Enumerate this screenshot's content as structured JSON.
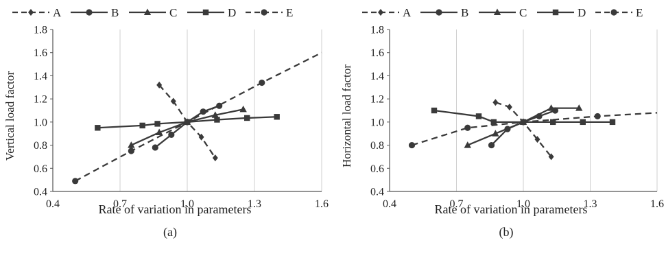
{
  "chart_data": [
    {
      "type": "line",
      "panel_label": "(a)",
      "xlabel": "Rate of variation in parameters",
      "ylabel": "Vertical load factor",
      "xlim": [
        0.4,
        1.6
      ],
      "ylim": [
        0.4,
        1.8
      ],
      "xticks": [
        "0.4",
        "0.7",
        "1.0",
        "1.3",
        "1.6"
      ],
      "yticks": [
        "0.4",
        "0.6",
        "0.8",
        "1.0",
        "1.2",
        "1.4",
        "1.6",
        "1.8"
      ],
      "grid": "vertical",
      "legend": "top",
      "series": [
        {
          "name": "A",
          "style": "dashed",
          "marker": "diamond",
          "points": [
            [
              0.875,
              1.32
            ],
            [
              0.938,
              1.18
            ],
            [
              1.0,
              1.0
            ],
            [
              1.063,
              0.87
            ],
            [
              1.125,
              0.69
            ]
          ]
        },
        {
          "name": "B",
          "style": "solid",
          "marker": "circle",
          "points": [
            [
              0.857,
              0.78
            ],
            [
              0.929,
              0.89
            ],
            [
              1.0,
              1.0
            ],
            [
              1.071,
              1.09
            ],
            [
              1.143,
              1.14
            ]
          ]
        },
        {
          "name": "C",
          "style": "solid",
          "marker": "triangle",
          "points": [
            [
              0.75,
              0.8
            ],
            [
              0.875,
              0.91
            ],
            [
              1.0,
              1.0
            ],
            [
              1.125,
              1.06
            ],
            [
              1.25,
              1.11
            ]
          ]
        },
        {
          "name": "D",
          "style": "solid",
          "marker": "square",
          "points": [
            [
              0.6,
              0.95
            ],
            [
              0.8,
              0.97
            ],
            [
              0.867,
              0.985
            ],
            [
              1.0,
              1.0
            ],
            [
              1.133,
              1.02
            ],
            [
              1.267,
              1.035
            ],
            [
              1.4,
              1.045
            ]
          ]
        },
        {
          "name": "E",
          "style": "dashed",
          "marker": "circle",
          "points": [
            [
              0.5,
              0.49
            ],
            [
              0.75,
              0.75
            ],
            [
              1.0,
              1.0
            ],
            [
              1.333,
              1.34
            ],
            [
              1.6,
              1.6
            ]
          ]
        }
      ]
    },
    {
      "type": "line",
      "panel_label": "(b)",
      "xlabel": "Rate of variation in parameters",
      "ylabel": "Horizontal load factor",
      "xlim": [
        0.4,
        1.6
      ],
      "ylim": [
        0.4,
        1.8
      ],
      "xticks": [
        "0.4",
        "0.7",
        "1.0",
        "1.3",
        "1.6"
      ],
      "yticks": [
        "0.4",
        "0.6",
        "0.8",
        "1.0",
        "1.2",
        "1.4",
        "1.6",
        "1.8"
      ],
      "grid": "vertical",
      "legend": "top",
      "series": [
        {
          "name": "A",
          "style": "dashed",
          "marker": "diamond",
          "points": [
            [
              0.875,
              1.17
            ],
            [
              0.938,
              1.13
            ],
            [
              1.0,
              1.0
            ],
            [
              1.063,
              0.85
            ],
            [
              1.125,
              0.7
            ]
          ]
        },
        {
          "name": "B",
          "style": "solid",
          "marker": "circle",
          "points": [
            [
              0.857,
              0.8
            ],
            [
              0.929,
              0.94
            ],
            [
              1.0,
              1.0
            ],
            [
              1.071,
              1.05
            ],
            [
              1.143,
              1.1
            ]
          ]
        },
        {
          "name": "C",
          "style": "solid",
          "marker": "triangle",
          "points": [
            [
              0.75,
              0.8
            ],
            [
              0.875,
              0.9
            ],
            [
              1.0,
              1.0
            ],
            [
              1.125,
              1.12
            ],
            [
              1.25,
              1.12
            ]
          ]
        },
        {
          "name": "D",
          "style": "solid",
          "marker": "square",
          "points": [
            [
              0.6,
              1.1
            ],
            [
              0.8,
              1.05
            ],
            [
              0.867,
              1.0
            ],
            [
              1.0,
              1.0
            ],
            [
              1.133,
              1.0
            ],
            [
              1.267,
              1.0
            ],
            [
              1.4,
              1.0
            ]
          ]
        },
        {
          "name": "E",
          "style": "dashed",
          "marker": "circle",
          "points": [
            [
              0.5,
              0.8
            ],
            [
              0.75,
              0.95
            ],
            [
              1.0,
              1.0
            ],
            [
              1.333,
              1.05
            ],
            [
              1.6,
              1.08
            ]
          ]
        }
      ]
    }
  ]
}
